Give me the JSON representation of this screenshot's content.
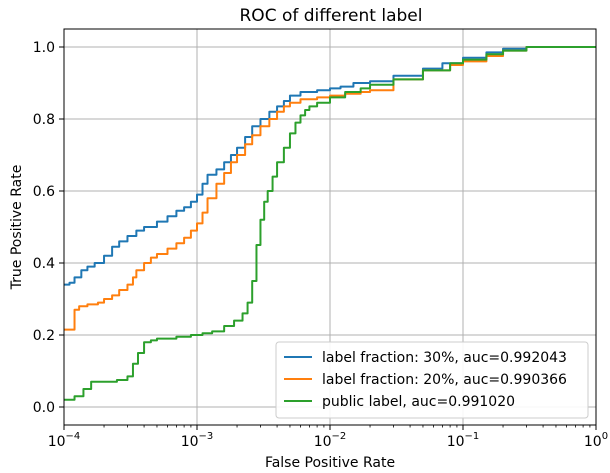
{
  "chart_data": {
    "type": "line",
    "title": "ROC of different label",
    "xlabel": "False Positive Rate",
    "ylabel": "True Positive Rate",
    "x_scale": "log",
    "xlim": [
      0.0001,
      1
    ],
    "ylim": [
      -0.05,
      1.05
    ],
    "grid": true,
    "legend_position": "lower-right",
    "x_ticks": [
      {
        "value": 0.0001,
        "base": "10",
        "exp": "−4"
      },
      {
        "value": 0.001,
        "base": "10",
        "exp": "−3"
      },
      {
        "value": 0.01,
        "base": "10",
        "exp": "−2"
      },
      {
        "value": 0.1,
        "base": "10",
        "exp": "−1"
      },
      {
        "value": 1,
        "base": "10",
        "exp": "0"
      }
    ],
    "y_ticks": [
      {
        "value": 0.0,
        "label": "0.0"
      },
      {
        "value": 0.2,
        "label": "0.2"
      },
      {
        "value": 0.4,
        "label": "0.4"
      },
      {
        "value": 0.6,
        "label": "0.6"
      },
      {
        "value": 0.8,
        "label": "0.8"
      },
      {
        "value": 1.0,
        "label": "1.0"
      }
    ],
    "series": [
      {
        "name": "label fraction: 30%, auc=0.992043",
        "color": "#1f77b4",
        "points": [
          [
            0.0001,
            0.34
          ],
          [
            0.00011,
            0.345
          ],
          [
            0.00012,
            0.36
          ],
          [
            0.000135,
            0.38
          ],
          [
            0.00015,
            0.39
          ],
          [
            0.00017,
            0.4
          ],
          [
            0.0002,
            0.42
          ],
          [
            0.00023,
            0.445
          ],
          [
            0.00026,
            0.46
          ],
          [
            0.0003,
            0.475
          ],
          [
            0.00035,
            0.49
          ],
          [
            0.0004,
            0.5
          ],
          [
            0.0005,
            0.515
          ],
          [
            0.0006,
            0.53
          ],
          [
            0.0007,
            0.545
          ],
          [
            0.0008,
            0.555
          ],
          [
            0.0009,
            0.57
          ],
          [
            0.001,
            0.59
          ],
          [
            0.0011,
            0.62
          ],
          [
            0.0012,
            0.645
          ],
          [
            0.0014,
            0.66
          ],
          [
            0.0016,
            0.68
          ],
          [
            0.0018,
            0.7
          ],
          [
            0.002,
            0.72
          ],
          [
            0.0023,
            0.75
          ],
          [
            0.0026,
            0.78
          ],
          [
            0.003,
            0.8
          ],
          [
            0.0035,
            0.82
          ],
          [
            0.004,
            0.835
          ],
          [
            0.0045,
            0.85
          ],
          [
            0.005,
            0.865
          ],
          [
            0.006,
            0.875
          ],
          [
            0.008,
            0.88
          ],
          [
            0.01,
            0.885
          ],
          [
            0.012,
            0.89
          ],
          [
            0.015,
            0.9
          ],
          [
            0.02,
            0.905
          ],
          [
            0.03,
            0.92
          ],
          [
            0.05,
            0.94
          ],
          [
            0.07,
            0.955
          ],
          [
            0.1,
            0.97
          ],
          [
            0.15,
            0.985
          ],
          [
            0.2,
            0.995
          ],
          [
            0.3,
            1.0
          ],
          [
            1.0,
            1.0
          ]
        ]
      },
      {
        "name": "label fraction: 20%, auc=0.990366",
        "color": "#ff7f0e",
        "points": [
          [
            0.0001,
            0.215
          ],
          [
            0.000115,
            0.215
          ],
          [
            0.00012,
            0.27
          ],
          [
            0.00013,
            0.28
          ],
          [
            0.00015,
            0.285
          ],
          [
            0.00018,
            0.29
          ],
          [
            0.0002,
            0.3
          ],
          [
            0.00023,
            0.31
          ],
          [
            0.00026,
            0.325
          ],
          [
            0.0003,
            0.34
          ],
          [
            0.00033,
            0.36
          ],
          [
            0.00035,
            0.38
          ],
          [
            0.0004,
            0.4
          ],
          [
            0.00045,
            0.415
          ],
          [
            0.0005,
            0.425
          ],
          [
            0.0006,
            0.44
          ],
          [
            0.0007,
            0.455
          ],
          [
            0.0008,
            0.47
          ],
          [
            0.0009,
            0.49
          ],
          [
            0.001,
            0.51
          ],
          [
            0.0011,
            0.54
          ],
          [
            0.0012,
            0.58
          ],
          [
            0.0014,
            0.62
          ],
          [
            0.0016,
            0.65
          ],
          [
            0.0018,
            0.68
          ],
          [
            0.002,
            0.7
          ],
          [
            0.0023,
            0.73
          ],
          [
            0.0026,
            0.755
          ],
          [
            0.003,
            0.78
          ],
          [
            0.0035,
            0.8
          ],
          [
            0.004,
            0.82
          ],
          [
            0.0045,
            0.835
          ],
          [
            0.005,
            0.845
          ],
          [
            0.006,
            0.855
          ],
          [
            0.008,
            0.86
          ],
          [
            0.01,
            0.865
          ],
          [
            0.013,
            0.87
          ],
          [
            0.017,
            0.875
          ],
          [
            0.02,
            0.88
          ],
          [
            0.03,
            0.91
          ],
          [
            0.05,
            0.935
          ],
          [
            0.08,
            0.95
          ],
          [
            0.1,
            0.96
          ],
          [
            0.15,
            0.975
          ],
          [
            0.2,
            0.99
          ],
          [
            0.3,
            1.0
          ],
          [
            1.0,
            1.0
          ]
        ]
      },
      {
        "name": "public label, auc=0.991020",
        "color": "#2ca02c",
        "points": [
          [
            0.0001,
            0.02
          ],
          [
            0.00012,
            0.03
          ],
          [
            0.00014,
            0.05
          ],
          [
            0.00016,
            0.07
          ],
          [
            0.0002,
            0.07
          ],
          [
            0.00025,
            0.075
          ],
          [
            0.0003,
            0.085
          ],
          [
            0.00033,
            0.12
          ],
          [
            0.00036,
            0.15
          ],
          [
            0.0004,
            0.18
          ],
          [
            0.00045,
            0.185
          ],
          [
            0.0005,
            0.19
          ],
          [
            0.0007,
            0.195
          ],
          [
            0.0009,
            0.2
          ],
          [
            0.0011,
            0.205
          ],
          [
            0.0013,
            0.21
          ],
          [
            0.0016,
            0.225
          ],
          [
            0.0019,
            0.24
          ],
          [
            0.0022,
            0.26
          ],
          [
            0.0024,
            0.29
          ],
          [
            0.0026,
            0.35
          ],
          [
            0.0028,
            0.45
          ],
          [
            0.003,
            0.52
          ],
          [
            0.0032,
            0.57
          ],
          [
            0.0034,
            0.6
          ],
          [
            0.0037,
            0.64
          ],
          [
            0.004,
            0.68
          ],
          [
            0.0045,
            0.72
          ],
          [
            0.005,
            0.76
          ],
          [
            0.0055,
            0.79
          ],
          [
            0.006,
            0.81
          ],
          [
            0.0065,
            0.825
          ],
          [
            0.007,
            0.835
          ],
          [
            0.008,
            0.845
          ],
          [
            0.01,
            0.86
          ],
          [
            0.013,
            0.875
          ],
          [
            0.017,
            0.885
          ],
          [
            0.02,
            0.895
          ],
          [
            0.03,
            0.91
          ],
          [
            0.05,
            0.935
          ],
          [
            0.08,
            0.955
          ],
          [
            0.1,
            0.965
          ],
          [
            0.15,
            0.98
          ],
          [
            0.2,
            0.99
          ],
          [
            0.3,
            1.0
          ],
          [
            1.0,
            1.0
          ]
        ]
      }
    ]
  }
}
